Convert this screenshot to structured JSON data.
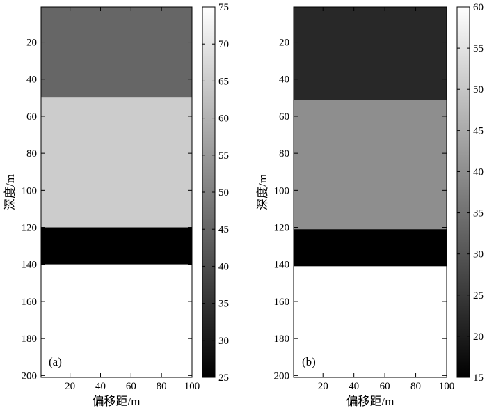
{
  "chart_data": [
    {
      "type": "heatmap",
      "panel_label": "(a)",
      "xlabel": "偏移距/m",
      "ylabel": "深度/m",
      "xlim": [
        1,
        100
      ],
      "ylim": [
        201,
        1
      ],
      "x_ticks": [
        "20",
        "40",
        "60",
        "80",
        "100"
      ],
      "y_ticks": [
        "20",
        "40",
        "60",
        "80",
        "100",
        "120",
        "140",
        "160",
        "180",
        "200"
      ],
      "layers": [
        {
          "depth_from": 1,
          "depth_to": 50,
          "value": 45
        },
        {
          "depth_from": 50,
          "depth_to": 120,
          "value": 65
        },
        {
          "depth_from": 120,
          "depth_to": 140,
          "value": 25
        },
        {
          "depth_from": 140,
          "depth_to": 201,
          "value": 75
        }
      ],
      "colorbar": {
        "min": 25,
        "max": 75,
        "ticks": [
          "25",
          "30",
          "35",
          "40",
          "45",
          "50",
          "55",
          "60",
          "65",
          "70",
          "75"
        ],
        "colormap": "gray"
      }
    },
    {
      "type": "heatmap",
      "panel_label": "(b)",
      "xlabel": "偏移距/m",
      "ylabel": "深度/m",
      "xlim": [
        1,
        100
      ],
      "ylim": [
        201,
        1
      ],
      "x_ticks": [
        "20",
        "40",
        "60",
        "80",
        "100"
      ],
      "y_ticks": [
        "20",
        "40",
        "60",
        "80",
        "100",
        "120",
        "140",
        "160",
        "180",
        "200"
      ],
      "layers": [
        {
          "depth_from": 1,
          "depth_to": 51,
          "value": 22
        },
        {
          "depth_from": 51,
          "depth_to": 121,
          "value": 40
        },
        {
          "depth_from": 121,
          "depth_to": 141,
          "value": 15
        },
        {
          "depth_from": 141,
          "depth_to": 201,
          "value": 60
        }
      ],
      "colorbar": {
        "min": 15,
        "max": 60,
        "ticks": [
          "15",
          "20",
          "25",
          "30",
          "35",
          "40",
          "45",
          "50",
          "55",
          "60"
        ],
        "colormap": "gray"
      }
    }
  ]
}
